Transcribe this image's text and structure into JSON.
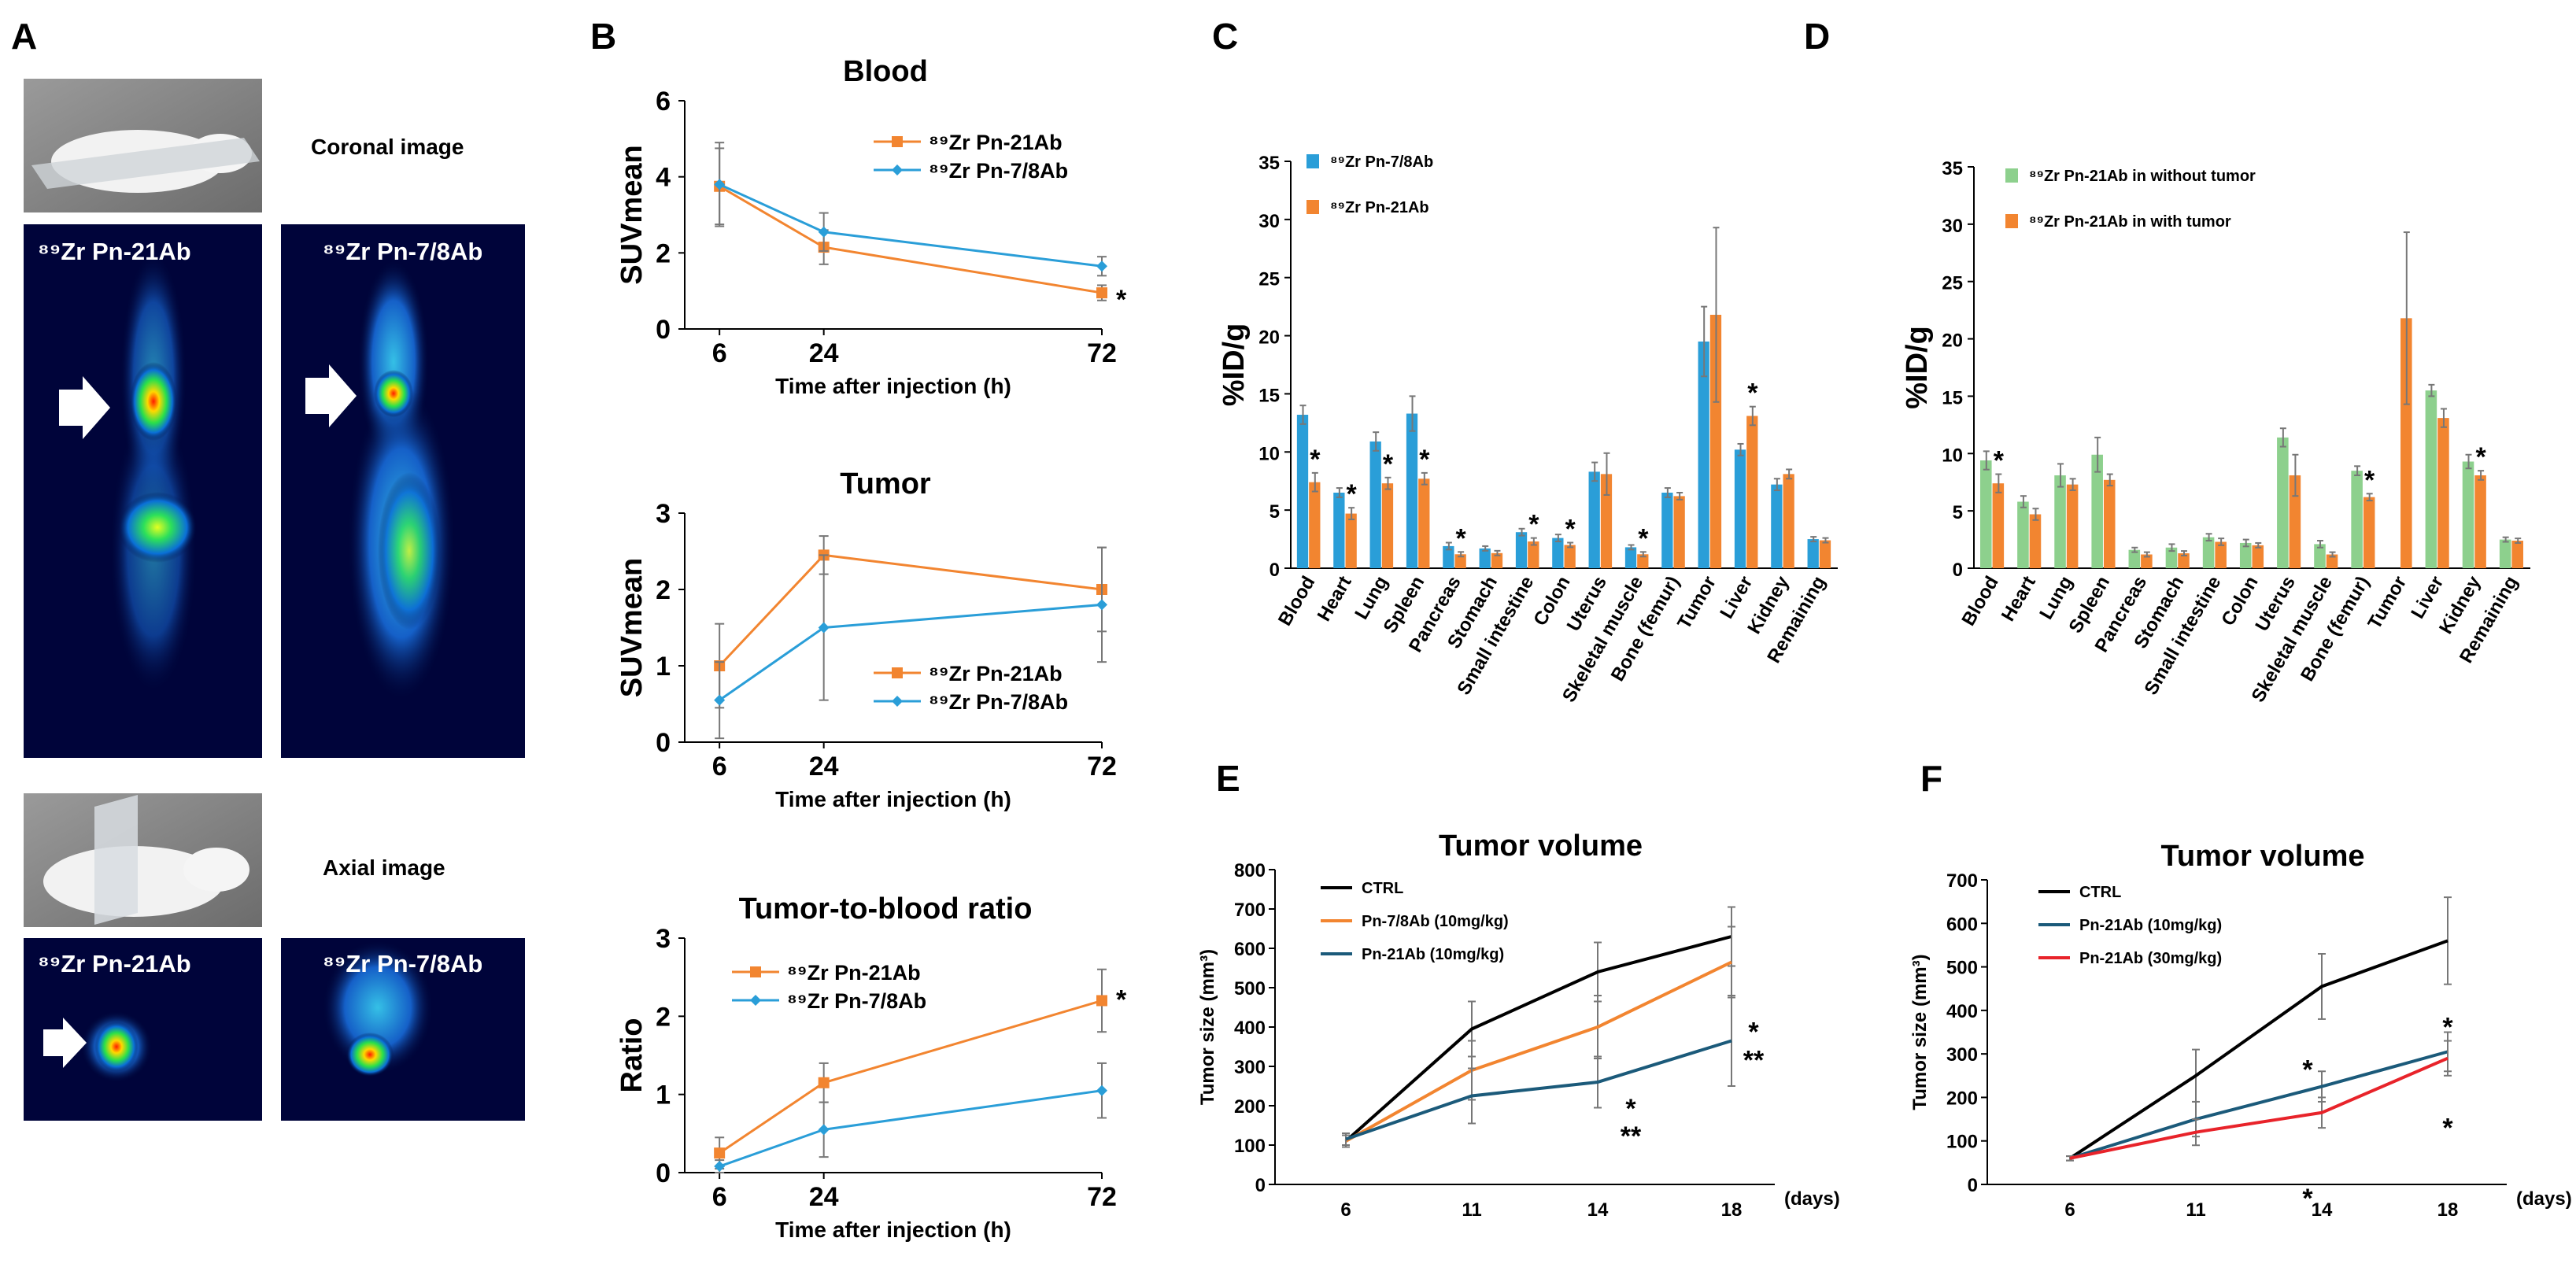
{
  "panel_labels": {
    "A": "A",
    "B": "B",
    "C": "C",
    "D": "D",
    "E": "E",
    "F": "F"
  },
  "panel_a": {
    "coronal_title": "Coronal image",
    "axial_title": "Axial image",
    "tracer_1": "⁸⁹Zr Pn-21Ab",
    "tracer_2": "⁸⁹Zr Pn-7/8Ab"
  },
  "colors": {
    "orange": "#F28530",
    "blue": "#2A9ED8",
    "light_green": "#8DD08D",
    "black": "#000000",
    "navy": "#1B5A7A",
    "red": "#E8232A",
    "error": "#777777"
  },
  "chart_data": [
    {
      "id": "b_blood",
      "type": "line",
      "title": "Blood",
      "xlabel": "Time after injection (h)",
      "ylabel": "SUVmean",
      "x": [
        6,
        24,
        72
      ],
      "xlim": [
        0,
        72
      ],
      "ylim": [
        0,
        6
      ],
      "yticks": [
        0,
        2,
        4,
        6
      ],
      "series": [
        {
          "name": "⁸⁹Zr Pn-21Ab",
          "color": "#F28530",
          "marker": "square",
          "values": [
            3.75,
            2.15,
            0.95
          ],
          "errors": [
            1.0,
            0.45,
            0.2
          ]
        },
        {
          "name": "⁸⁹Zr Pn-7/8Ab",
          "color": "#2A9ED8",
          "marker": "diamond",
          "values": [
            3.8,
            2.55,
            1.65
          ],
          "errors": [
            1.1,
            0.5,
            0.25
          ]
        }
      ],
      "annotations": [
        {
          "x": 72,
          "y": 0.75,
          "text": "*"
        }
      ]
    },
    {
      "id": "b_tumor",
      "type": "line",
      "title": "Tumor",
      "xlabel": "Time after injection (h)",
      "ylabel": "SUVmean",
      "x": [
        6,
        24,
        72
      ],
      "xlim": [
        0,
        72
      ],
      "ylim": [
        0,
        3
      ],
      "yticks": [
        0,
        1,
        2,
        3
      ],
      "series": [
        {
          "name": "⁸⁹Zr Pn-21Ab",
          "color": "#F28530",
          "marker": "square",
          "values": [
            1.0,
            2.45,
            2.0
          ],
          "errors": [
            0.55,
            0.25,
            0.55
          ]
        },
        {
          "name": "⁸⁹Zr Pn-7/8Ab",
          "color": "#2A9ED8",
          "marker": "diamond",
          "values": [
            0.55,
            1.5,
            1.8
          ],
          "errors": [
            0.5,
            0.95,
            0.75
          ]
        }
      ],
      "annotations": []
    },
    {
      "id": "b_ratio",
      "type": "line",
      "title": "Tumor-to-blood ratio",
      "xlabel": "Time after injection (h)",
      "ylabel": "Ratio",
      "x": [
        6,
        24,
        72
      ],
      "xlim": [
        0,
        72
      ],
      "ylim": [
        0,
        3
      ],
      "yticks": [
        0,
        1,
        2,
        3
      ],
      "series": [
        {
          "name": "⁸⁹Zr Pn-21Ab",
          "color": "#F28530",
          "marker": "square",
          "values": [
            0.25,
            1.15,
            2.2
          ],
          "errors": [
            0.2,
            0.25,
            0.4
          ]
        },
        {
          "name": "⁸⁹Zr Pn-7/8Ab",
          "color": "#2A9ED8",
          "marker": "diamond",
          "values": [
            0.08,
            0.55,
            1.05
          ],
          "errors": [
            0.08,
            0.35,
            0.35
          ]
        }
      ],
      "annotations": [
        {
          "x": 72,
          "y": 2.2,
          "text": "*"
        }
      ]
    },
    {
      "id": "c",
      "type": "bar",
      "title": "",
      "xlabel": "",
      "ylabel": "%ID/g",
      "categories": [
        "Blood",
        "Heart",
        "Lung",
        "Spleen",
        "Pancreas",
        "Stomach",
        "Small intestine",
        "Colon",
        "Uterus",
        "Skeletal muscle",
        "Bone (femur)",
        "Tumor",
        "Liver",
        "Kidney",
        "Remaining"
      ],
      "ylim": [
        0,
        35
      ],
      "yticks": [
        0,
        5,
        10,
        15,
        20,
        25,
        30,
        35
      ],
      "series": [
        {
          "name": "⁸⁹Zr Pn-7/8Ab",
          "color": "#2A9ED8",
          "values": [
            13.2,
            6.5,
            10.9,
            13.3,
            1.9,
            1.7,
            3.1,
            2.6,
            8.3,
            1.8,
            6.5,
            19.5,
            10.2,
            7.2,
            2.5
          ],
          "errors": [
            0.8,
            0.4,
            0.8,
            1.5,
            0.3,
            0.2,
            0.3,
            0.3,
            0.8,
            0.2,
            0.4,
            3.0,
            0.5,
            0.5,
            0.2
          ]
        },
        {
          "name": "⁸⁹Zr Pn-21Ab",
          "color": "#F28530",
          "values": [
            7.4,
            4.7,
            7.3,
            7.7,
            1.2,
            1.3,
            2.3,
            2.0,
            8.1,
            1.2,
            6.2,
            21.8,
            13.1,
            8.1,
            2.4
          ],
          "errors": [
            0.8,
            0.5,
            0.5,
            0.5,
            0.2,
            0.2,
            0.3,
            0.2,
            1.8,
            0.2,
            0.3,
            7.5,
            0.8,
            0.4,
            0.2
          ]
        }
      ],
      "significant": [
        "Blood",
        "Heart",
        "Lung",
        "Spleen",
        "Pancreas",
        "Small intestine",
        "Colon",
        "Skeletal muscle",
        "Liver"
      ]
    },
    {
      "id": "d",
      "type": "bar",
      "title": "",
      "xlabel": "",
      "ylabel": "%ID/g",
      "categories": [
        "Blood",
        "Heart",
        "Lung",
        "Spleen",
        "Pancreas",
        "Stomach",
        "Small intestine",
        "Colon",
        "Uterus",
        "Skeletal muscle",
        "Bone (femur)",
        "Tumor",
        "Liver",
        "Kidney",
        "Remaining"
      ],
      "ylim": [
        0,
        35
      ],
      "yticks": [
        0,
        5,
        10,
        15,
        20,
        25,
        30,
        35
      ],
      "series": [
        {
          "name": "⁸⁹Zr Pn-21Ab in without tumor",
          "color": "#8DD08D",
          "values": [
            9.4,
            5.8,
            8.1,
            9.9,
            1.6,
            1.8,
            2.7,
            2.2,
            11.4,
            2.1,
            8.5,
            null,
            15.5,
            9.3,
            2.5
          ],
          "errors": [
            0.8,
            0.5,
            1.0,
            1.5,
            0.2,
            0.3,
            0.3,
            0.3,
            0.8,
            0.3,
            0.4,
            null,
            0.5,
            0.6,
            0.2
          ]
        },
        {
          "name": "⁸⁹Zr Pn-21Ab in with tumor",
          "color": "#F28530",
          "values": [
            7.4,
            4.7,
            7.3,
            7.7,
            1.2,
            1.3,
            2.3,
            2.0,
            8.1,
            1.2,
            6.2,
            21.8,
            13.1,
            8.1,
            2.4
          ],
          "errors": [
            0.8,
            0.5,
            0.5,
            0.5,
            0.2,
            0.2,
            0.3,
            0.2,
            1.8,
            0.2,
            0.3,
            7.5,
            0.8,
            0.4,
            0.2
          ]
        }
      ],
      "significant": [
        "Blood",
        "Bone (femur)",
        "Kidney"
      ]
    },
    {
      "id": "e",
      "type": "line",
      "title": "Tumor volume",
      "xlabel": "(days)",
      "ylabel": "Tumor size (mm³)",
      "x": [
        6,
        11,
        14,
        18
      ],
      "ylim": [
        0,
        800
      ],
      "yticks": [
        0,
        100,
        200,
        300,
        400,
        500,
        600,
        700,
        800
      ],
      "series": [
        {
          "name": "CTRL",
          "color": "#000000",
          "values": [
            110,
            395,
            540,
            630
          ],
          "errors": [
            15,
            70,
            75,
            75
          ]
        },
        {
          "name": "Pn-7/8Ab (10mg/kg)",
          "color": "#F28530",
          "values": [
            110,
            290,
            400,
            565
          ],
          "errors": [
            15,
            75,
            80,
            90
          ]
        },
        {
          "name": "Pn-21Ab (10mg/kg)",
          "color": "#1B5A7A",
          "values": [
            115,
            225,
            260,
            365
          ],
          "errors": [
            15,
            70,
            65,
            115
          ]
        }
      ],
      "annotations": [
        {
          "x": 14,
          "y": 260,
          "text": "*"
        },
        {
          "x": 14,
          "y": 260,
          "text": "**"
        },
        {
          "x": 18,
          "y": 365,
          "text": "*"
        },
        {
          "x": 18,
          "y": 365,
          "text": "**"
        }
      ]
    },
    {
      "id": "f",
      "type": "line",
      "title": "Tumor volume",
      "xlabel": "(days)",
      "ylabel": "Tumor size (mm³)",
      "x": [
        6,
        11,
        14,
        18
      ],
      "ylim": [
        0,
        700
      ],
      "yticks": [
        0,
        100,
        200,
        300,
        400,
        500,
        600,
        700
      ],
      "series": [
        {
          "name": "CTRL",
          "color": "#000000",
          "values": [
            60,
            250,
            455,
            560
          ],
          "errors": [
            5,
            60,
            75,
            100
          ]
        },
        {
          "name": "Pn-21Ab (10mg/kg)",
          "color": "#1B5A7A",
          "values": [
            60,
            150,
            225,
            305
          ],
          "errors": [
            5,
            40,
            35,
            45
          ]
        },
        {
          "name": "Pn-21Ab (30mg/kg)",
          "color": "#E8232A",
          "values": [
            60,
            120,
            165,
            290
          ],
          "errors": [
            5,
            30,
            35,
            40
          ]
        }
      ],
      "annotations": [
        {
          "x": 14,
          "y": 225,
          "text": "*"
        },
        {
          "x": 14,
          "y": 165,
          "text": "*"
        },
        {
          "x": 18,
          "y": 305,
          "text": "*"
        },
        {
          "x": 18,
          "y": 290,
          "text": "*"
        }
      ]
    }
  ]
}
